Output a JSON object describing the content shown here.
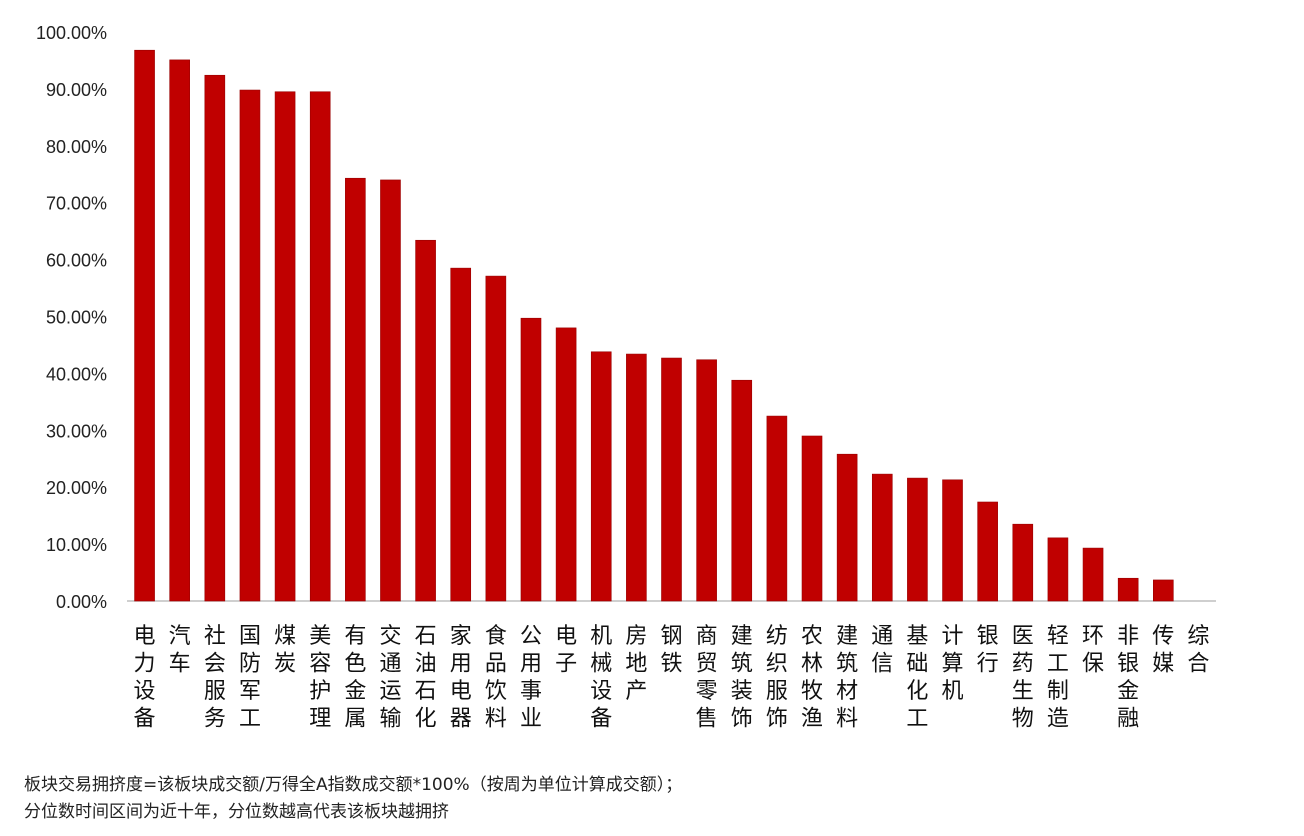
{
  "chart_data": {
    "type": "bar",
    "title": "",
    "xlabel": "",
    "ylabel": "",
    "ylim": [
      0,
      100
    ],
    "y_ticks": [
      "0.00%",
      "10.00%",
      "20.00%",
      "30.00%",
      "40.00%",
      "50.00%",
      "60.00%",
      "70.00%",
      "80.00%",
      "90.00%",
      "100.00%"
    ],
    "grid": false,
    "bar_color": "#c00000",
    "categories": [
      "电力设备",
      "汽车",
      "社会服务",
      "国防军工",
      "煤炭",
      "美容护理",
      "有色金属",
      "交通运输",
      "石油石化",
      "家用电器",
      "食品饮料",
      "公用事业",
      "电子",
      "机械设备",
      "房地产",
      "钢铁",
      "商贸零售",
      "建筑装饰",
      "纺织服饰",
      "农林牧渔",
      "建筑材料",
      "通信",
      "基础化工",
      "计算机",
      "银行",
      "医药生物",
      "轻工制造",
      "环保",
      "非银金融",
      "传媒",
      "综合"
    ],
    "values": [
      96.8,
      95.1,
      92.4,
      89.8,
      89.5,
      89.5,
      74.3,
      74.0,
      63.4,
      58.5,
      57.1,
      49.7,
      48.0,
      43.8,
      43.4,
      42.7,
      42.4,
      38.8,
      32.5,
      29.0,
      25.8,
      22.3,
      21.6,
      21.3,
      17.4,
      13.5,
      11.1,
      9.3,
      4.0,
      3.7,
      0.0
    ]
  },
  "notes": {
    "line1": "板块交易拥挤度=该板块成交额/万得全A指数成交额*100%（按周为单位计算成交额）；",
    "line2": "分位数时间区间为近十年，分位数越高代表该板块越拥挤"
  }
}
